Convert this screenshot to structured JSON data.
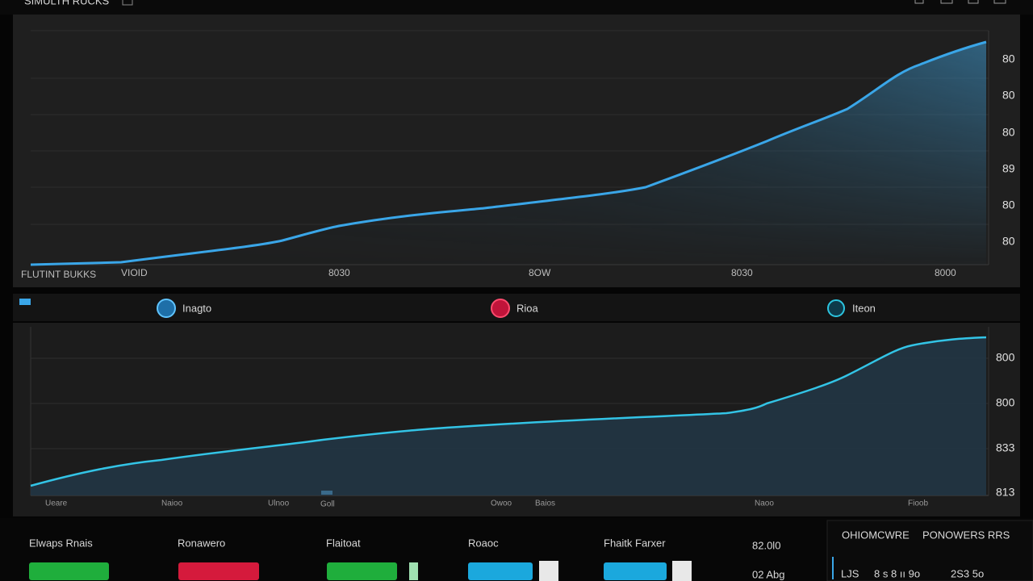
{
  "header": {
    "title": "SIMULTH RUCKS"
  },
  "top_panel": {
    "y_labels": [
      "80",
      "80",
      "80",
      "89",
      "80",
      "80"
    ],
    "x_labels": [
      "FLUTINT BUKKS",
      "VIOID",
      "8030",
      "8OW",
      "8030",
      "8000"
    ]
  },
  "legend": {
    "items": [
      "Inagto",
      "Rioa",
      "Iteon"
    ]
  },
  "bottom_panel": {
    "y_labels": [
      "800",
      "800",
      "833",
      "813"
    ],
    "x_labels": [
      "Ueare",
      "Naioo",
      "Ulnoo",
      "Goll",
      "Owoo",
      "Baios",
      "Naoo",
      "Fioob"
    ]
  },
  "footer": {
    "metrics": [
      "Elwaps Rnais",
      "Ronawero",
      "Flaitoat",
      "Roaoc",
      "Fhaitk Farxer"
    ],
    "values": [
      "82.0l0",
      "02 Abg"
    ],
    "side": {
      "title": "OHIOMCWRE",
      "alert": "PONOWERS RRS",
      "prefix": "LJS",
      "codes": "8 s 8 ıı 9o",
      "reading": "2S3 5o"
    }
  }
}
